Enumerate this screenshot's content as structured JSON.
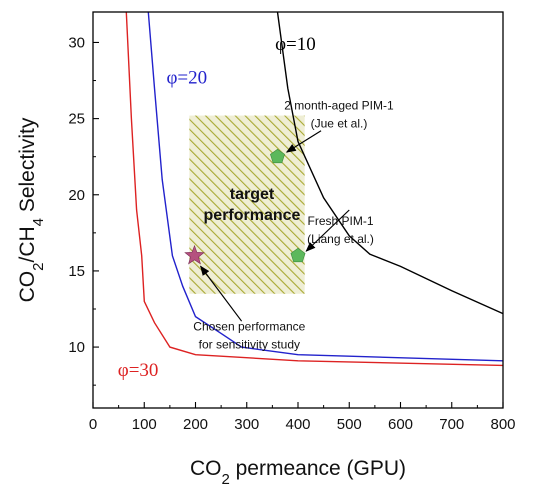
{
  "chart_data": {
    "type": "line",
    "xlabel": "CO₂ permeance (GPU)",
    "ylabel": "CO₂/CH₄ Selectivity",
    "xlim": [
      0,
      800
    ],
    "ylim": [
      6,
      32
    ],
    "xticks": [
      0,
      100,
      200,
      300,
      400,
      500,
      600,
      700,
      800
    ],
    "yticks": [
      10,
      15,
      20,
      25,
      30
    ],
    "grid": false,
    "series": [
      {
        "name": "φ=10",
        "color": "#000000",
        "points": [
          [
            360,
            32
          ],
          [
            380,
            27
          ],
          [
            400,
            23.5
          ],
          [
            450,
            19.8
          ],
          [
            500,
            17.3
          ],
          [
            540,
            16.1
          ],
          [
            600,
            15.3
          ],
          [
            700,
            13.7
          ],
          [
            800,
            12.2
          ]
        ]
      },
      {
        "name": "φ=20",
        "color": "#2222cc",
        "points": [
          [
            108,
            32
          ],
          [
            120,
            27
          ],
          [
            135,
            21
          ],
          [
            155,
            16
          ],
          [
            175,
            14
          ],
          [
            200,
            12
          ],
          [
            250,
            10.9
          ],
          [
            290,
            10
          ],
          [
            400,
            9.5
          ],
          [
            500,
            9.4
          ],
          [
            800,
            9.1
          ]
        ]
      },
      {
        "name": "φ=30",
        "color": "#dd2222",
        "points": [
          [
            65,
            32
          ],
          [
            75,
            25
          ],
          [
            85,
            19
          ],
          [
            95,
            16
          ],
          [
            100,
            13
          ],
          [
            120,
            11.6
          ],
          [
            150,
            10
          ],
          [
            200,
            9.5
          ],
          [
            250,
            9.4
          ],
          [
            400,
            9.1
          ],
          [
            800,
            8.8
          ]
        ]
      }
    ],
    "target_region": {
      "label_line1": "target",
      "label_line2": "performance",
      "x": [
        188,
        413
      ],
      "y": [
        13.5,
        25.2
      ]
    },
    "markers": [
      {
        "name": "2 month-aged PIM-1",
        "x": 360,
        "y": 22.5,
        "shape": "pentagon",
        "color": "#5cb85c"
      },
      {
        "name": "Fresh PIM-1",
        "x": 400,
        "y": 16,
        "shape": "pentagon",
        "color": "#5cb85c"
      },
      {
        "name": "Chosen performance",
        "x": 198,
        "y": 16,
        "shape": "star",
        "color": "#b5517f"
      }
    ],
    "annotations": [
      {
        "lines": [
          "2 month-aged PIM-1",
          "(Jue et al.)"
        ],
        "text_x": 480,
        "text_y": 25.6,
        "arrow_from": [
          445,
          24.2
        ],
        "arrow_to": [
          378,
          22.8
        ]
      },
      {
        "lines": [
          "Fresh PIM-1",
          "(Liang et al.)"
        ],
        "text_x": 483,
        "text_y": 18.0,
        "arrow_from": [
          500,
          19.0
        ],
        "arrow_to": [
          416,
          16.3
        ]
      },
      {
        "lines": [
          "Chosen performance",
          "for sensitivity study"
        ],
        "text_x": 305,
        "text_y": 11.1,
        "arrow_from": [
          290,
          11.7
        ],
        "arrow_to": [
          210,
          15.3
        ]
      }
    ],
    "series_labels": [
      {
        "text": "φ=10",
        "x": 395,
        "y": 29.5,
        "color": "#000000"
      },
      {
        "text": "φ=20",
        "x": 183,
        "y": 27.3,
        "color": "#2222cc"
      },
      {
        "text": "φ=30",
        "x": 88,
        "y": 8.1,
        "color": "#dd2222"
      }
    ]
  }
}
